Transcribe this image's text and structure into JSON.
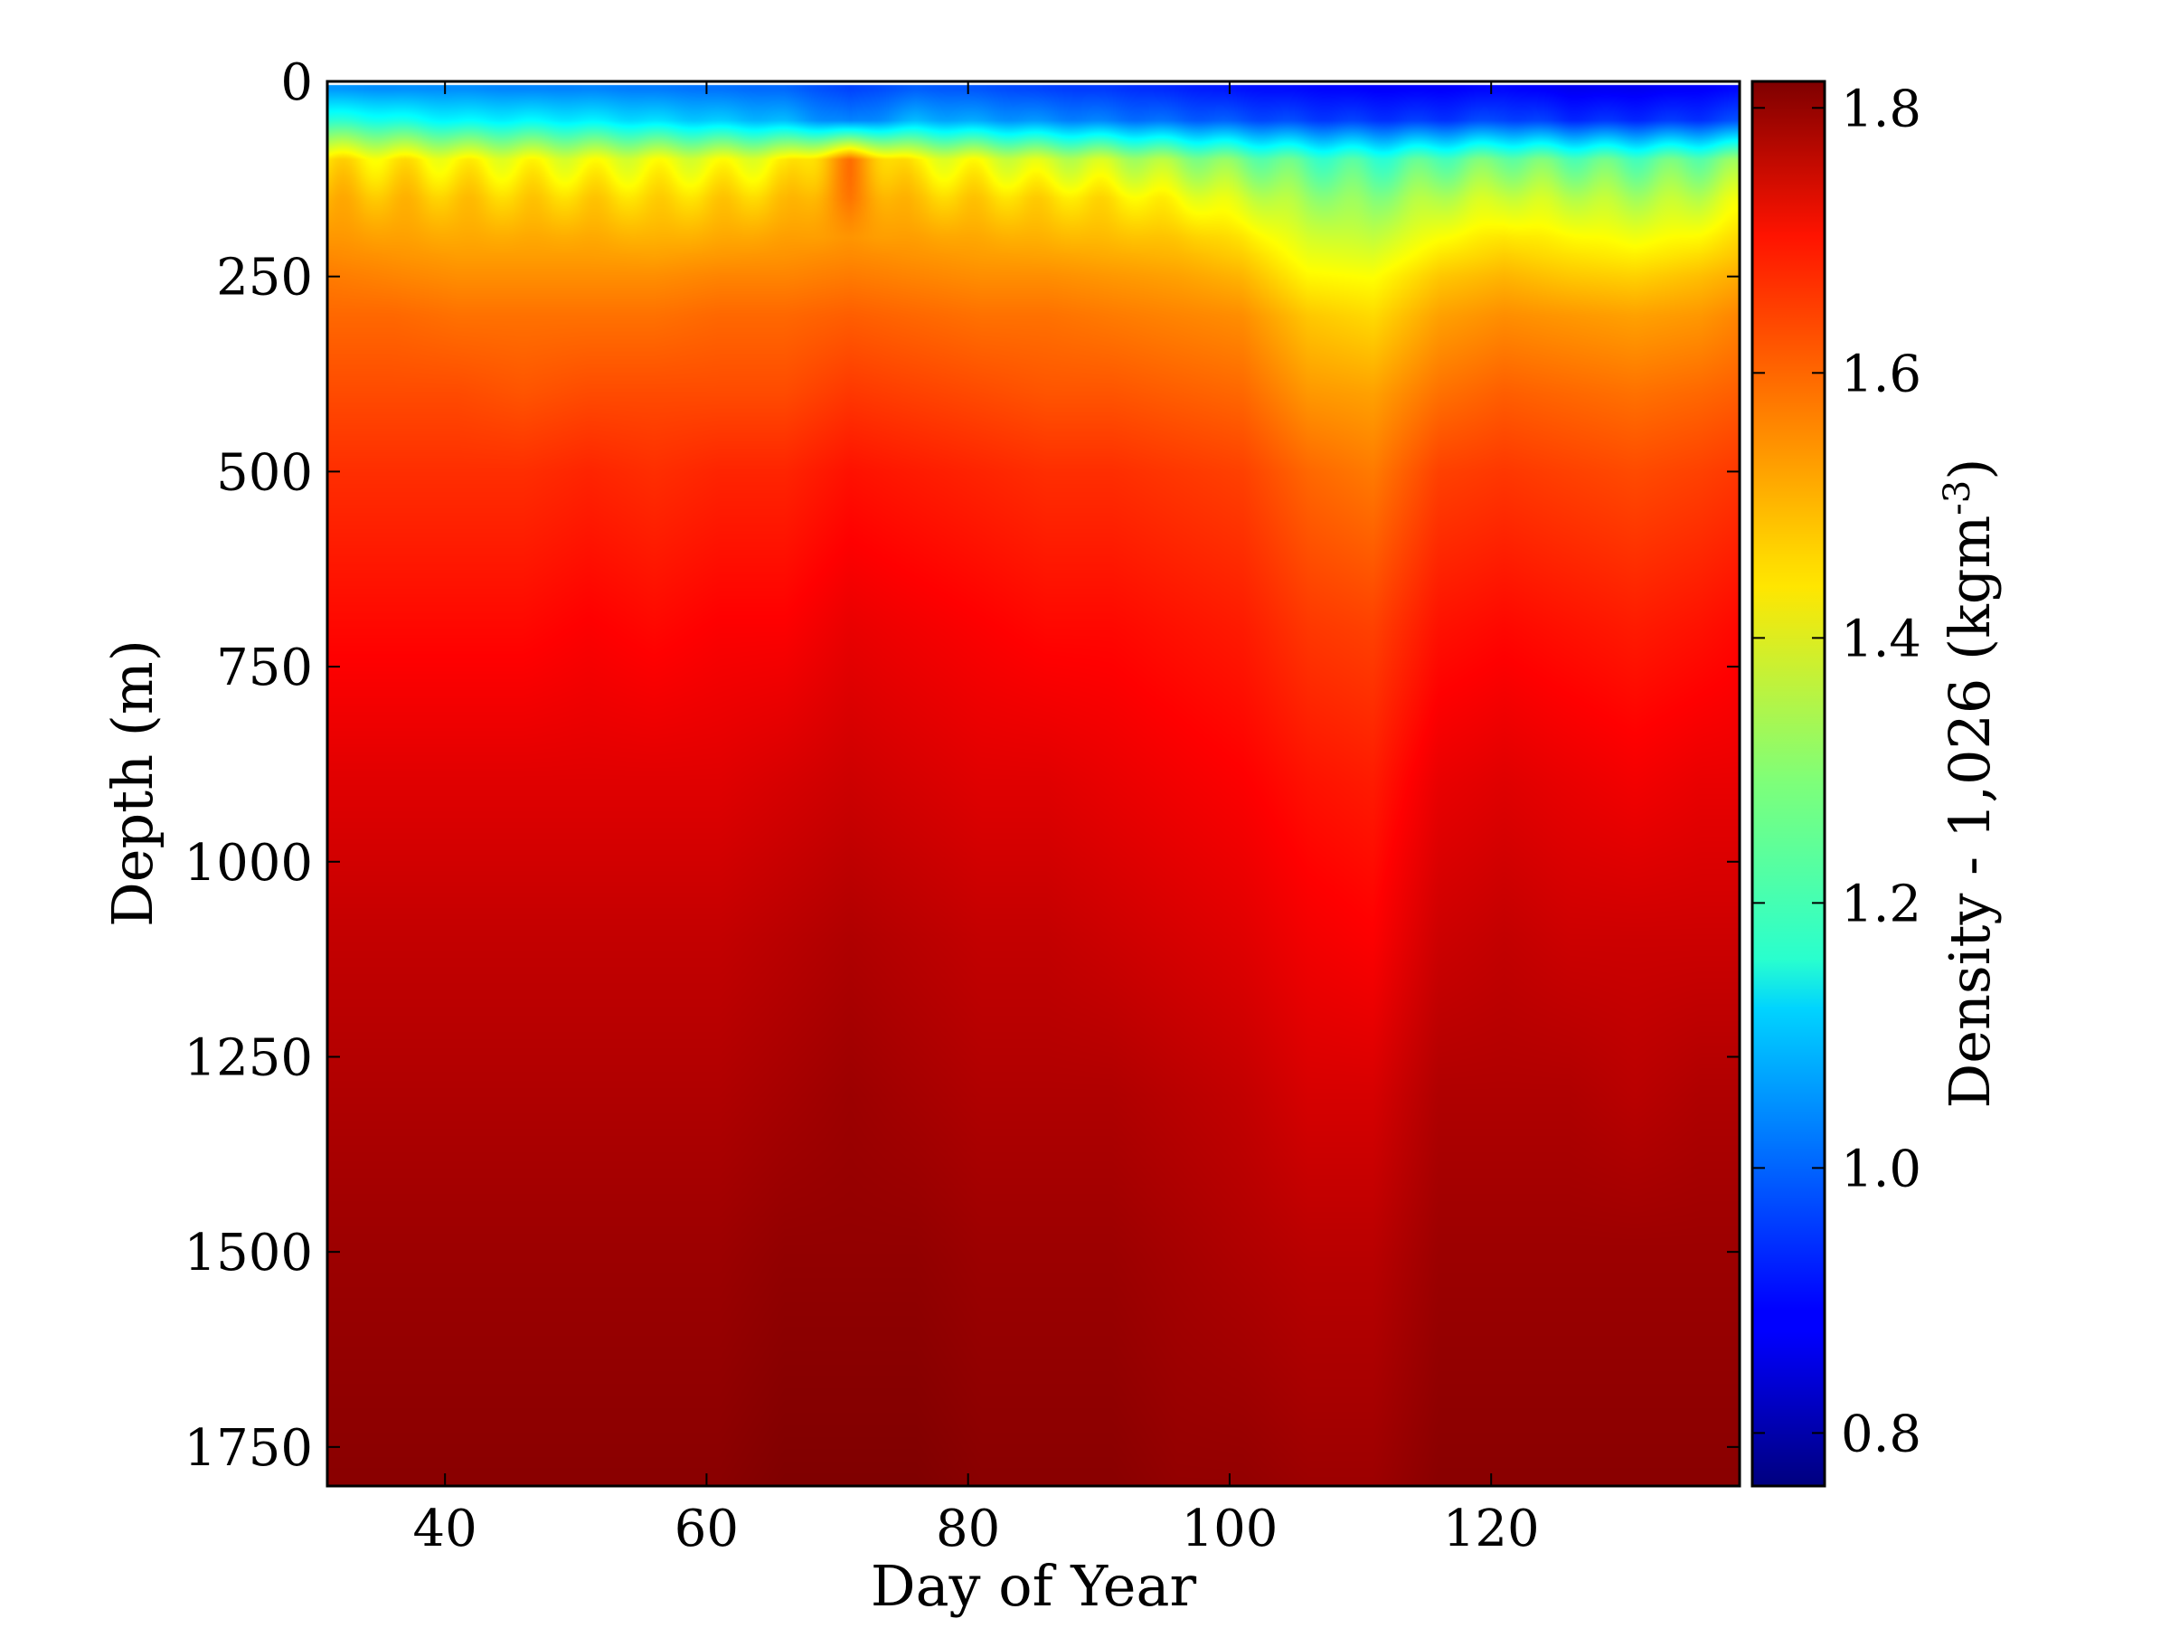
{
  "chart_data": {
    "type": "heatmap",
    "title": "",
    "xlabel": "Day of Year",
    "ylabel": "Depth (m)",
    "xlim": [
      31,
      139
    ],
    "ylim": [
      1800,
      0
    ],
    "y_inverted": true,
    "xticks": [
      40,
      60,
      80,
      100,
      120
    ],
    "yticks": [
      0,
      250,
      500,
      750,
      1000,
      1250,
      1500,
      1750
    ],
    "colorbar": {
      "label_main": "Density - 1,026 (kgm",
      "label_sup": "-3",
      "label_close": ")",
      "range": [
        0.76,
        1.82
      ],
      "ticks": [
        0.8,
        1.0,
        1.2,
        1.4,
        1.6,
        1.8
      ],
      "colormap": "jet"
    },
    "days": [
      31,
      36,
      41,
      46,
      51,
      56,
      61,
      66,
      71,
      76,
      81,
      86,
      91,
      96,
      101,
      106,
      111,
      116,
      121,
      126,
      131,
      136,
      139
    ],
    "depths": [
      10,
      50,
      100,
      150,
      200,
      250,
      300,
      400,
      500,
      700,
      900,
      1100,
      1300,
      1500,
      1800
    ],
    "density_profiles": [
      {
        "day": 31,
        "values": [
          1.05,
          1.2,
          1.45,
          1.5,
          1.53,
          1.56,
          1.58,
          1.61,
          1.64,
          1.68,
          1.72,
          1.75,
          1.77,
          1.79,
          1.81
        ]
      },
      {
        "day": 36,
        "values": [
          1.04,
          1.18,
          1.44,
          1.49,
          1.52,
          1.55,
          1.58,
          1.61,
          1.64,
          1.68,
          1.72,
          1.75,
          1.77,
          1.79,
          1.81
        ]
      },
      {
        "day": 41,
        "values": [
          1.04,
          1.15,
          1.42,
          1.48,
          1.51,
          1.54,
          1.57,
          1.61,
          1.64,
          1.68,
          1.72,
          1.75,
          1.77,
          1.79,
          1.81
        ]
      },
      {
        "day": 46,
        "values": [
          1.03,
          1.15,
          1.41,
          1.47,
          1.51,
          1.54,
          1.57,
          1.6,
          1.64,
          1.68,
          1.72,
          1.75,
          1.77,
          1.79,
          1.81
        ]
      },
      {
        "day": 51,
        "values": [
          1.03,
          1.14,
          1.4,
          1.47,
          1.51,
          1.54,
          1.57,
          1.61,
          1.65,
          1.69,
          1.72,
          1.75,
          1.77,
          1.79,
          1.81
        ]
      },
      {
        "day": 56,
        "values": [
          1.02,
          1.12,
          1.4,
          1.46,
          1.5,
          1.54,
          1.57,
          1.61,
          1.64,
          1.68,
          1.72,
          1.75,
          1.77,
          1.79,
          1.81
        ]
      },
      {
        "day": 61,
        "values": [
          1.01,
          1.1,
          1.4,
          1.47,
          1.51,
          1.55,
          1.58,
          1.61,
          1.65,
          1.69,
          1.72,
          1.75,
          1.77,
          1.79,
          1.81
        ]
      },
      {
        "day": 66,
        "values": [
          1.0,
          1.08,
          1.42,
          1.48,
          1.52,
          1.55,
          1.58,
          1.61,
          1.65,
          1.69,
          1.73,
          1.76,
          1.78,
          1.8,
          1.82
        ]
      },
      {
        "day": 71,
        "values": [
          0.96,
          1.02,
          1.55,
          1.55,
          1.53,
          1.56,
          1.59,
          1.63,
          1.67,
          1.71,
          1.74,
          1.77,
          1.79,
          1.8,
          1.82
        ]
      },
      {
        "day": 76,
        "values": [
          0.99,
          1.08,
          1.42,
          1.48,
          1.52,
          1.55,
          1.58,
          1.62,
          1.66,
          1.7,
          1.73,
          1.76,
          1.78,
          1.8,
          1.82
        ]
      },
      {
        "day": 81,
        "values": [
          0.98,
          1.06,
          1.4,
          1.47,
          1.51,
          1.54,
          1.57,
          1.61,
          1.65,
          1.69,
          1.72,
          1.75,
          1.77,
          1.79,
          1.81
        ]
      },
      {
        "day": 86,
        "values": [
          0.96,
          1.04,
          1.37,
          1.46,
          1.5,
          1.54,
          1.57,
          1.6,
          1.64,
          1.68,
          1.72,
          1.75,
          1.77,
          1.79,
          1.81
        ]
      },
      {
        "day": 91,
        "values": [
          0.95,
          1.02,
          1.36,
          1.45,
          1.49,
          1.53,
          1.56,
          1.6,
          1.64,
          1.68,
          1.71,
          1.74,
          1.77,
          1.79,
          1.81
        ]
      },
      {
        "day": 96,
        "values": [
          0.93,
          1.0,
          1.32,
          1.42,
          1.48,
          1.52,
          1.55,
          1.59,
          1.63,
          1.67,
          1.7,
          1.73,
          1.76,
          1.78,
          1.8
        ]
      },
      {
        "day": 101,
        "values": [
          0.91,
          0.98,
          1.28,
          1.38,
          1.45,
          1.5,
          1.54,
          1.58,
          1.62,
          1.66,
          1.69,
          1.72,
          1.75,
          1.77,
          1.8
        ]
      },
      {
        "day": 106,
        "values": [
          0.9,
          0.96,
          1.24,
          1.32,
          1.38,
          1.43,
          1.48,
          1.53,
          1.58,
          1.63,
          1.67,
          1.7,
          1.73,
          1.76,
          1.79
        ]
      },
      {
        "day": 111,
        "values": [
          0.89,
          0.95,
          1.22,
          1.3,
          1.36,
          1.42,
          1.46,
          1.52,
          1.56,
          1.62,
          1.66,
          1.69,
          1.73,
          1.76,
          1.79
        ]
      },
      {
        "day": 116,
        "values": [
          0.89,
          0.95,
          1.25,
          1.35,
          1.42,
          1.48,
          1.52,
          1.57,
          1.62,
          1.67,
          1.71,
          1.74,
          1.77,
          1.79,
          1.81
        ]
      },
      {
        "day": 121,
        "values": [
          0.9,
          0.97,
          1.28,
          1.38,
          1.45,
          1.5,
          1.54,
          1.59,
          1.63,
          1.68,
          1.72,
          1.75,
          1.77,
          1.79,
          1.81
        ]
      },
      {
        "day": 126,
        "values": [
          0.88,
          0.94,
          1.26,
          1.36,
          1.43,
          1.48,
          1.53,
          1.58,
          1.62,
          1.67,
          1.71,
          1.74,
          1.77,
          1.79,
          1.81
        ]
      },
      {
        "day": 131,
        "values": [
          0.88,
          0.94,
          1.25,
          1.34,
          1.41,
          1.47,
          1.52,
          1.57,
          1.61,
          1.66,
          1.7,
          1.74,
          1.76,
          1.79,
          1.81
        ]
      },
      {
        "day": 136,
        "values": [
          0.89,
          0.95,
          1.27,
          1.36,
          1.43,
          1.49,
          1.53,
          1.58,
          1.62,
          1.67,
          1.71,
          1.74,
          1.77,
          1.79,
          1.81
        ]
      },
      {
        "day": 139,
        "values": [
          0.9,
          0.97,
          1.3,
          1.4,
          1.46,
          1.51,
          1.55,
          1.59,
          1.63,
          1.68,
          1.71,
          1.74,
          1.77,
          1.79,
          1.81
        ]
      }
    ]
  }
}
